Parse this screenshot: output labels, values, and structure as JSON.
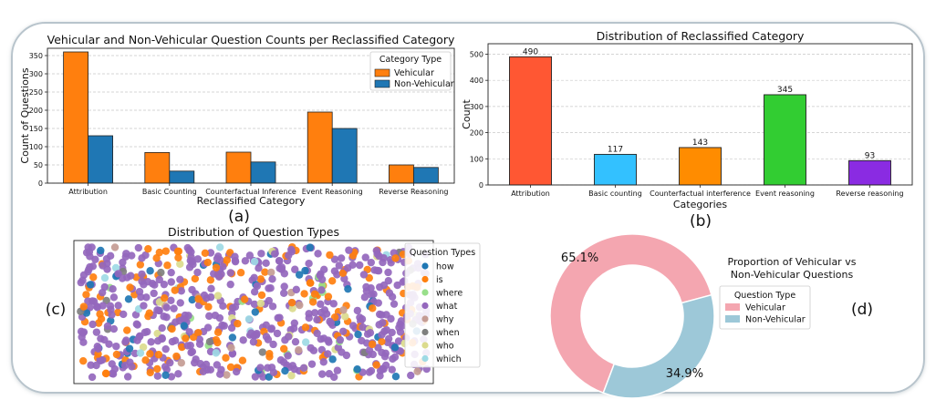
{
  "panels": {
    "a": "(a)",
    "b": "(b)",
    "c": "(c)",
    "d": "(d)"
  },
  "chart_data": [
    {
      "id": "a",
      "type": "bar",
      "title": "Vehicular and Non-Vehicular Question Counts per Reclassified Category",
      "xlabel": "Reclassified Category",
      "ylabel": "Count of Questions",
      "categories": [
        "Attribution",
        "Basic Counting",
        "Counterfactual Inference",
        "Event Reasoning",
        "Reverse Reasoning"
      ],
      "series": [
        {
          "name": "Vehicular",
          "values": [
            360,
            84,
            85,
            195,
            50
          ],
          "color": "#ff7f0e"
        },
        {
          "name": "Non-Vehicular",
          "values": [
            130,
            33,
            58,
            150,
            43
          ],
          "color": "#1f77b4"
        }
      ],
      "ylim": [
        0,
        370
      ],
      "yticks": [
        0,
        50,
        100,
        150,
        200,
        250,
        300,
        350
      ],
      "legend_title": "Category Type",
      "legend_position": "top-right",
      "grid": "y-dashed"
    },
    {
      "id": "b",
      "type": "bar",
      "title": "Distribution of Reclassified Category",
      "xlabel": "Categories",
      "ylabel": "Count",
      "categories": [
        "Attribution",
        "Basic counting",
        "Counterfactual interference",
        "Event reasoning",
        "Reverse reasoning"
      ],
      "values": [
        490,
        117,
        143,
        345,
        93
      ],
      "value_labels": [
        "490",
        "117",
        "143",
        "345",
        "93"
      ],
      "colors": [
        "#ff5733",
        "#33c1ff",
        "#ff8c00",
        "#32cd32",
        "#8a2be2"
      ],
      "ylim": [
        0,
        540
      ],
      "yticks": [
        0,
        100,
        200,
        300,
        400,
        500
      ],
      "grid": "y-dashed"
    },
    {
      "id": "c",
      "type": "scatter",
      "title": "Distribution of Question Types",
      "legend_title": "Question Types",
      "legend_position": "right",
      "categories": [
        "how",
        "is",
        "where",
        "what",
        "why",
        "when",
        "who",
        "which"
      ],
      "colors": [
        "#1f77b4",
        "#ff7f0e",
        "#98df8a",
        "#9467bd",
        "#c49c94",
        "#7f7f7f",
        "#dbdb8d",
        "#9edae5"
      ],
      "approx_counts": [
        40,
        150,
        12,
        520,
        12,
        12,
        20,
        12
      ]
    },
    {
      "id": "d",
      "type": "pie",
      "title": "Proportion of Vehicular vs Non-Vehicular Questions",
      "title_lines": [
        "Proportion of Vehicular vs",
        "Non-Vehicular Questions"
      ],
      "labels": [
        "Vehicular",
        "Non-Vehicular"
      ],
      "values": [
        65.1,
        34.9
      ],
      "value_labels": [
        "65.1%",
        "34.9%"
      ],
      "colors": [
        "#f4a6b0",
        "#9dc8d8"
      ],
      "legend_title": "Question Type",
      "donut": true
    }
  ]
}
